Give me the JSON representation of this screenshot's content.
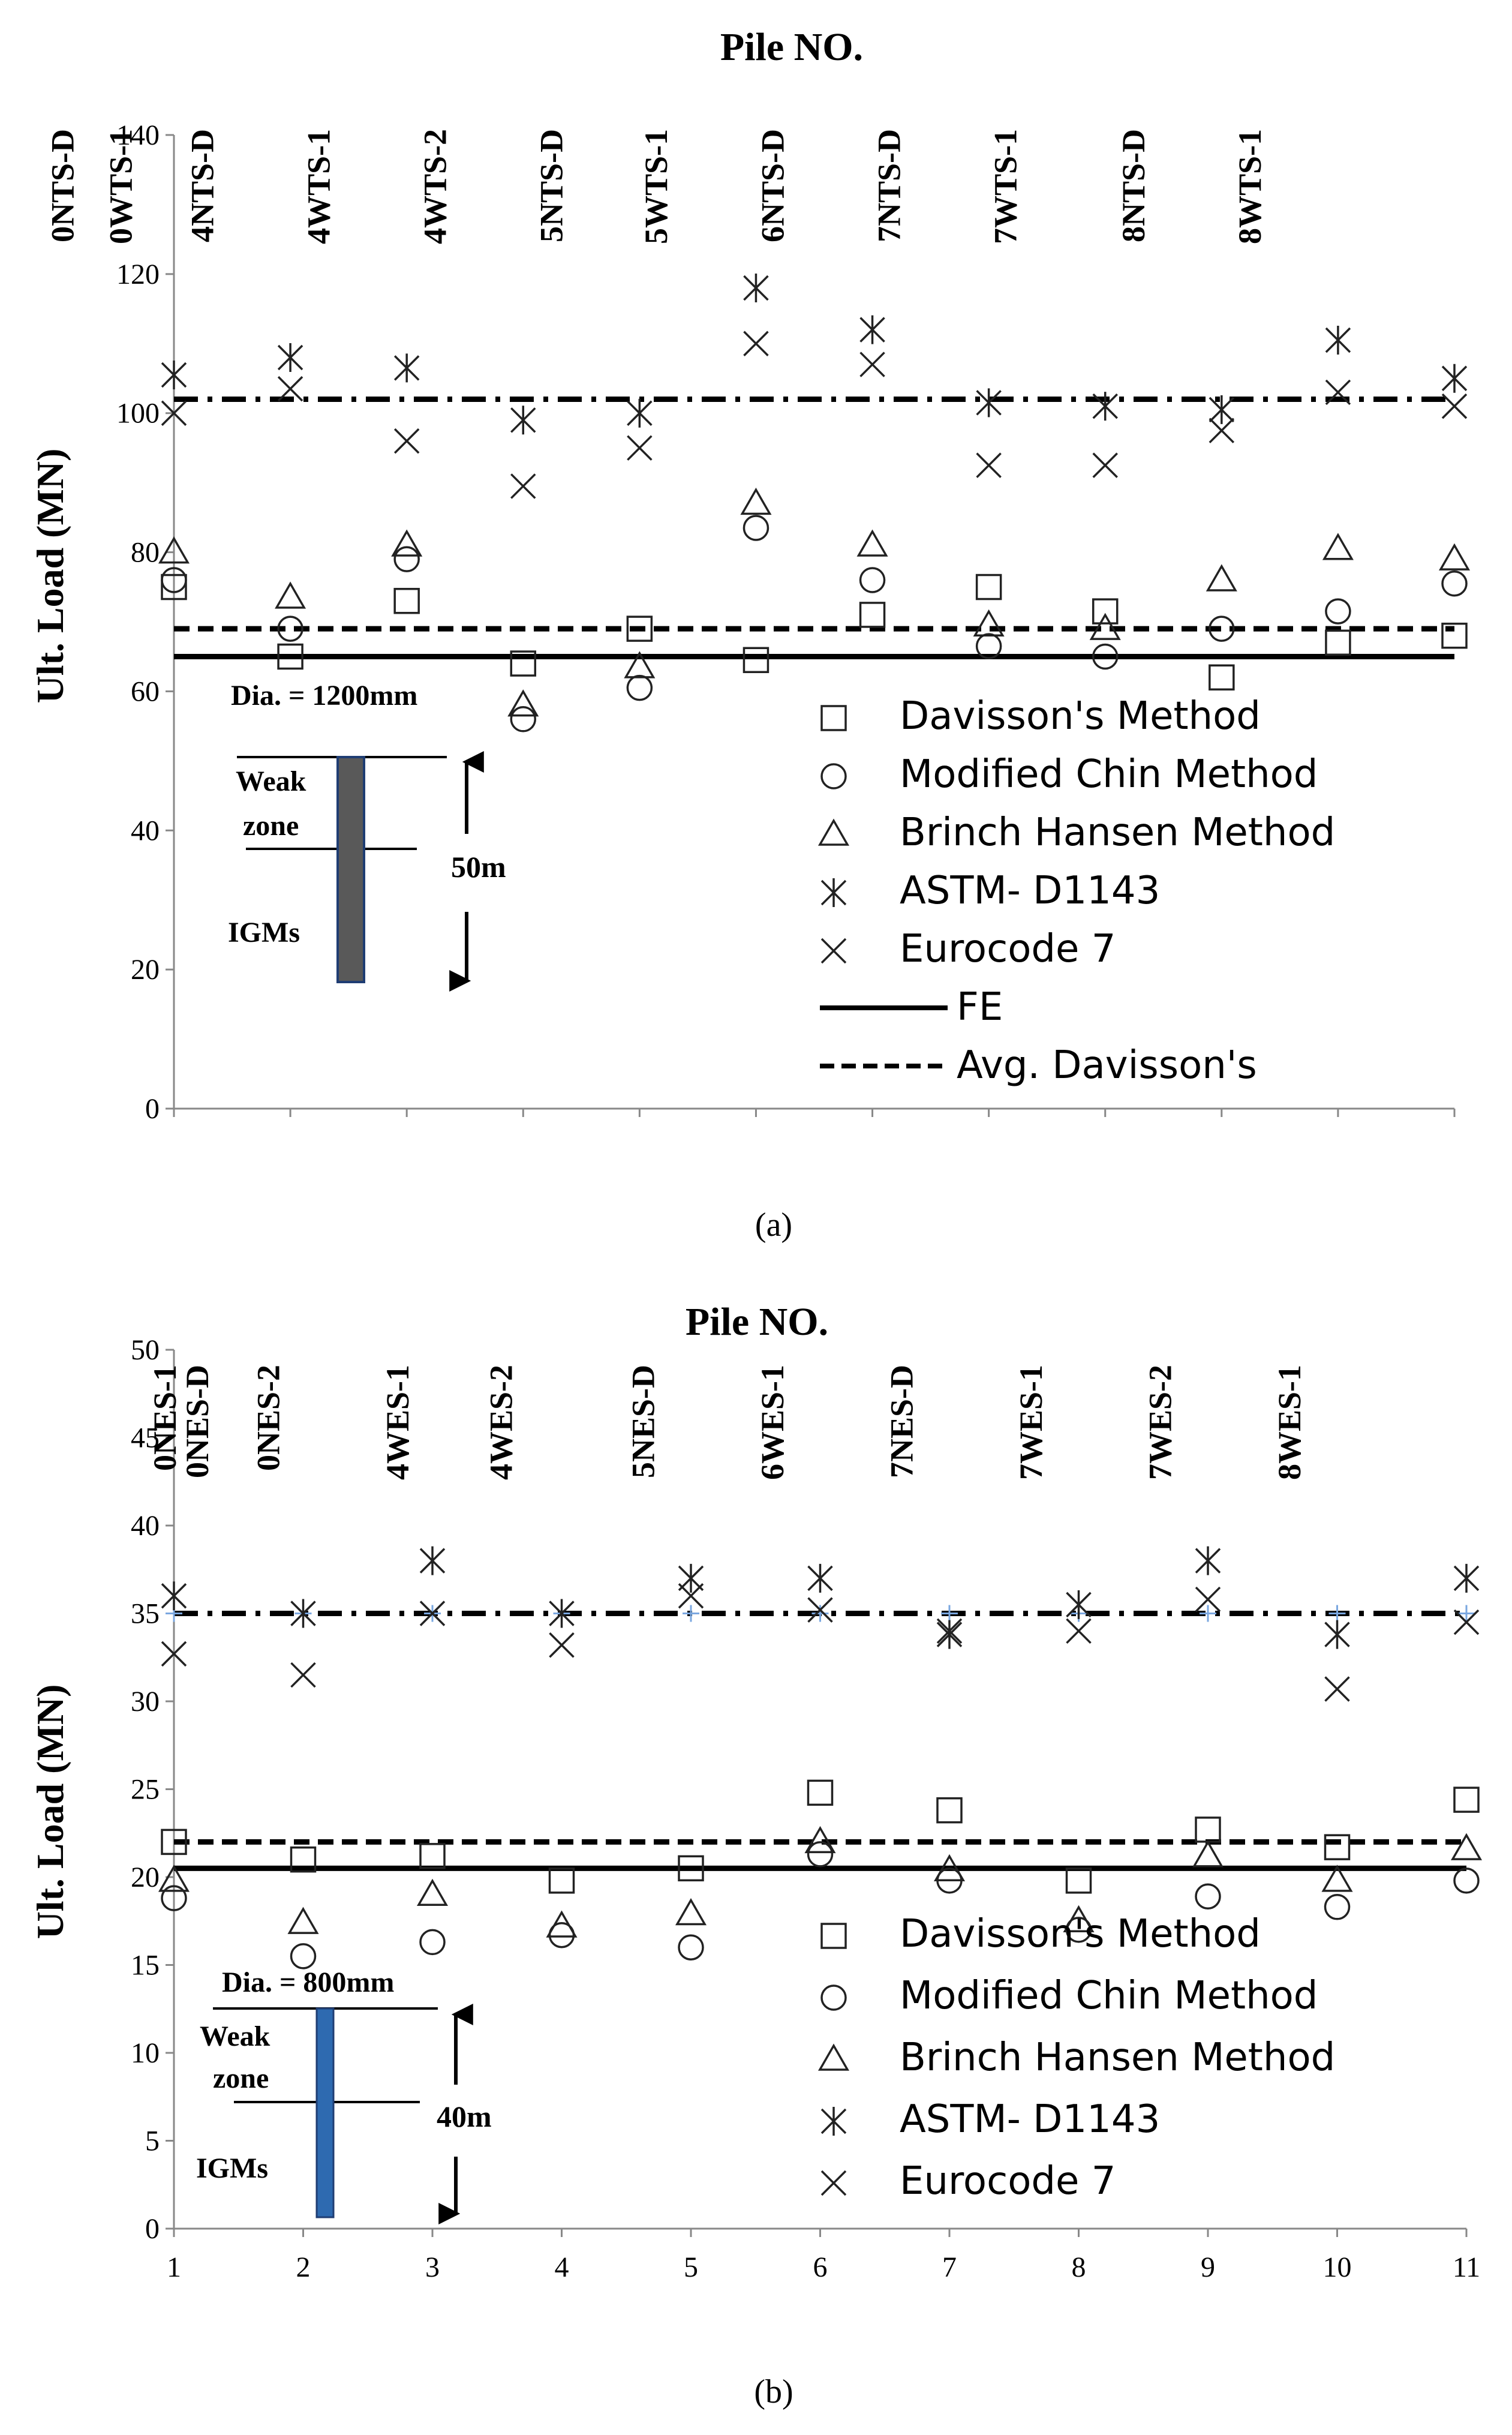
{
  "chart_data": [
    {
      "type": "scatter",
      "panel_label": "(a)",
      "title": "Pile NO.",
      "ylabel": "Ult. Load (MN)",
      "xlabel": "",
      "ylim": [
        0,
        140
      ],
      "yticks": [
        0,
        20,
        40,
        60,
        80,
        100,
        120,
        140
      ],
      "x_tick_labels_shown": false,
      "pile_labels": [
        {
          "text": "0NTS-D",
          "x": 0.6
        },
        {
          "text": "0WTS-1",
          "x": 1.1
        },
        {
          "text": "4NTS-D",
          "x": 1.8
        },
        {
          "text": "4WTS-1",
          "x": 2.8
        },
        {
          "text": "4WTS-2",
          "x": 3.8
        },
        {
          "text": "5NTS-D",
          "x": 4.8
        },
        {
          "text": "5WTS-1",
          "x": 5.7
        },
        {
          "text": "6NTS-D",
          "x": 6.7
        },
        {
          "text": "7NTS-D",
          "x": 7.7
        },
        {
          "text": "7WTS-1",
          "x": 8.7
        },
        {
          "text": "8NTS-D",
          "x": 9.8
        },
        {
          "text": "8WTS-1",
          "x": 10.8
        }
      ],
      "series": [
        {
          "name": "Davisson's  Method",
          "marker": "square",
          "points": [
            [
              1,
              75
            ],
            [
              2,
              65
            ],
            [
              3,
              73
            ],
            [
              4,
              64
            ],
            [
              5,
              69
            ],
            [
              6,
              64.5
            ],
            [
              7,
              71
            ],
            [
              8,
              75
            ],
            [
              9,
              71.5
            ],
            [
              10,
              62
            ],
            [
              11,
              67
            ],
            [
              12,
              68
            ]
          ]
        },
        {
          "name": "Modified Chin Method",
          "marker": "circle",
          "points": [
            [
              1,
              76
            ],
            [
              2,
              69
            ],
            [
              3,
              79
            ],
            [
              4,
              56
            ],
            [
              5,
              60.5
            ],
            [
              6,
              83.5
            ],
            [
              7,
              76
            ],
            [
              8,
              66.5
            ],
            [
              9,
              65
            ],
            [
              10,
              69
            ],
            [
              11,
              71.5
            ],
            [
              12,
              75.5
            ]
          ]
        },
        {
          "name": "Brinch Hansen Method",
          "marker": "triangle",
          "points": [
            [
              1,
              80
            ],
            [
              2,
              73.5
            ],
            [
              3,
              81
            ],
            [
              4,
              58
            ],
            [
              5,
              63.5
            ],
            [
              6,
              87
            ],
            [
              7,
              81
            ],
            [
              8,
              69.5
            ],
            [
              9,
              69
            ],
            [
              10,
              76
            ],
            [
              11,
              80.5
            ],
            [
              12,
              79
            ]
          ]
        },
        {
          "name": "ASTM- D1143",
          "marker": "asterisk",
          "points": [
            [
              1,
              105.5
            ],
            [
              2,
              108
            ],
            [
              3,
              106.5
            ],
            [
              4,
              99
            ],
            [
              5,
              100
            ],
            [
              6,
              118
            ],
            [
              7,
              112
            ],
            [
              8,
              101.5
            ],
            [
              9,
              101
            ],
            [
              10,
              100.5
            ],
            [
              11,
              110.5
            ],
            [
              12,
              105
            ]
          ]
        },
        {
          "name": "Eurocode 7",
          "marker": "x",
          "points": [
            [
              1,
              100
            ],
            [
              2,
              103.5
            ],
            [
              3,
              96
            ],
            [
              4,
              89.5
            ],
            [
              5,
              95
            ],
            [
              6,
              110
            ],
            [
              7,
              107
            ],
            [
              8,
              92.5
            ],
            [
              9,
              92.5
            ],
            [
              10,
              97.5
            ],
            [
              11,
              103
            ],
            [
              12,
              101
            ]
          ]
        }
      ],
      "reference_lines": [
        {
          "name": "FE",
          "value": 65,
          "style": "solid"
        },
        {
          "name": "Avg. Davisson's",
          "value": 69,
          "style": "dashed"
        },
        {
          "name": "",
          "value": 102,
          "style": "dashdot"
        }
      ],
      "inset": {
        "dia": "Dia. = 1200mm",
        "weak": "Weak",
        "zone": "zone",
        "length": "50m",
        "igm": "IGMs"
      },
      "legend_position": "center-right"
    },
    {
      "type": "scatter",
      "panel_label": "(b)",
      "title": "Pile NO.",
      "ylabel": "Ult. Load (MN)",
      "xlabel": "",
      "ylim": [
        0,
        50
      ],
      "yticks": [
        0,
        5,
        10,
        15,
        20,
        25,
        30,
        35,
        40,
        45,
        50
      ],
      "xlim": [
        1,
        11
      ],
      "xticks": [
        1,
        2,
        3,
        4,
        5,
        6,
        7,
        8,
        9,
        10,
        11
      ],
      "pile_labels": [
        {
          "text": "0NES-1",
          "x": 1.2
        },
        {
          "text": "0NES-D",
          "x": 1.45
        },
        {
          "text": "0NES-2",
          "x": 2.0
        },
        {
          "text": "4WES-1",
          "x": 3.0
        },
        {
          "text": "4WES-2",
          "x": 3.8
        },
        {
          "text": "5NES-D",
          "x": 4.9
        },
        {
          "text": "6WES-1",
          "x": 5.9
        },
        {
          "text": "7NES-D",
          "x": 6.9
        },
        {
          "text": "7WES-1",
          "x": 7.9
        },
        {
          "text": "7WES-2",
          "x": 8.9
        },
        {
          "text": "8WES-1",
          "x": 9.9
        }
      ],
      "series": [
        {
          "name": "Davisson's  Method",
          "marker": "square",
          "points": [
            [
              1,
              22
            ],
            [
              2,
              21
            ],
            [
              3,
              21.2
            ],
            [
              4,
              19.8
            ],
            [
              5,
              20.5
            ],
            [
              6,
              24.8
            ],
            [
              7,
              23.8
            ],
            [
              8,
              19.8
            ],
            [
              9,
              22.7
            ],
            [
              10,
              21.7
            ],
            [
              11,
              24.4
            ]
          ]
        },
        {
          "name": "Modified Chin Method",
          "marker": "circle",
          "points": [
            [
              1,
              18.8
            ],
            [
              2,
              15.5
            ],
            [
              3,
              16.3
            ],
            [
              4,
              16.7
            ],
            [
              5,
              16
            ],
            [
              6,
              21.3
            ],
            [
              7,
              19.8
            ],
            [
              8,
              17
            ],
            [
              9,
              18.9
            ],
            [
              10,
              18.3
            ],
            [
              11,
              19.8
            ]
          ]
        },
        {
          "name": "Brinch Hansen Method",
          "marker": "triangle",
          "points": [
            [
              1,
              19.8
            ],
            [
              2,
              17.4
            ],
            [
              3,
              19
            ],
            [
              4,
              17.2
            ],
            [
              5,
              17.9
            ],
            [
              6,
              22
            ],
            [
              7,
              20.4
            ],
            [
              8,
              17.5
            ],
            [
              9,
              21.2
            ],
            [
              10,
              19.8
            ],
            [
              11,
              21.6
            ]
          ]
        },
        {
          "name": "ASTM- D1143",
          "marker": "asterisk",
          "points": [
            [
              1,
              36
            ],
            [
              2,
              35
            ],
            [
              3,
              38
            ],
            [
              4,
              35
            ],
            [
              5,
              37
            ],
            [
              6,
              37
            ],
            [
              7,
              33.8
            ],
            [
              8,
              35.5
            ],
            [
              9,
              38
            ],
            [
              10,
              33.8
            ],
            [
              11,
              37
            ]
          ]
        },
        {
          "name": "Eurocode 7",
          "marker": "x",
          "points": [
            [
              1,
              32.7
            ],
            [
              2,
              31.5
            ],
            [
              3,
              35
            ],
            [
              4,
              33.2
            ],
            [
              5,
              36
            ],
            [
              6,
              35.2
            ],
            [
              7,
              34
            ],
            [
              8,
              34
            ],
            [
              9,
              35.8
            ],
            [
              10,
              30.7
            ],
            [
              11,
              34.5
            ]
          ]
        }
      ],
      "reference_lines": [
        {
          "name": "",
          "value": 20.5,
          "style": "solid"
        },
        {
          "name": "",
          "value": 22,
          "style": "dashed"
        },
        {
          "name": "",
          "value": 35,
          "style": "dashdot"
        }
      ],
      "inset": {
        "dia": "Dia. = 800mm",
        "weak": "Weak",
        "zone": "zone",
        "length": "40m",
        "igm": "IGMs"
      },
      "legend_position": "center-right"
    }
  ]
}
